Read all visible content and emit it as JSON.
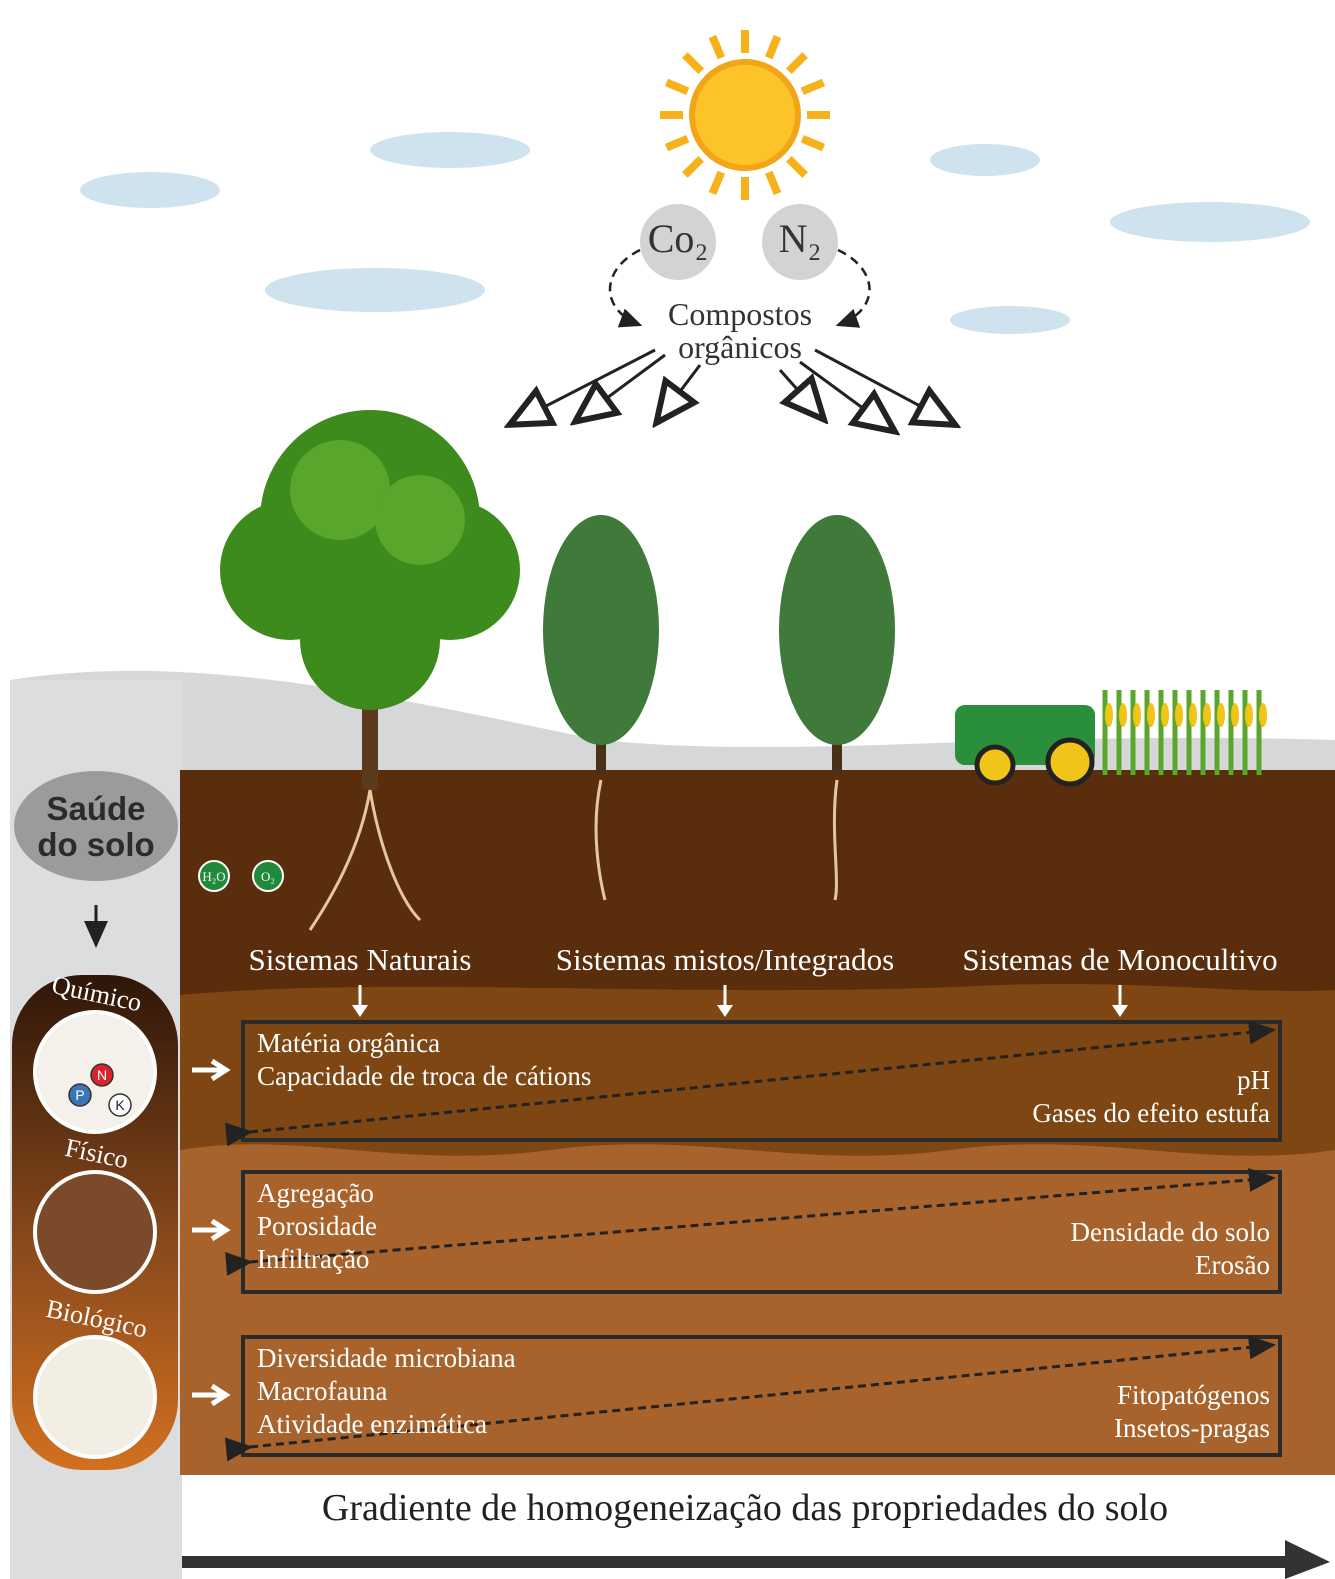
{
  "atmosphere": {
    "gases": [
      "Co₂",
      "N₂"
    ],
    "product": [
      "Compostos",
      "orgânicos"
    ]
  },
  "molecules": [
    "H₂O",
    "O₂"
  ],
  "soil_health": {
    "title": [
      "Saúde",
      "do solo"
    ],
    "indicators": [
      {
        "label": "Químico",
        "icon_labels": [
          "N",
          "P",
          "K"
        ]
      },
      {
        "label": "Físico"
      },
      {
        "label": "Biológico"
      }
    ]
  },
  "systems": [
    "Sistemas Naturais",
    "Sistemas mistos/Integrados",
    "Sistemas de Monocultivo"
  ],
  "panels": [
    {
      "left": [
        "Matéria orgânica",
        "Capacidade de troca de cátions"
      ],
      "right": [
        "pH",
        "Gases do efeito estufa"
      ]
    },
    {
      "left": [
        "Agregação",
        "Porosidade",
        "Infiltração"
      ],
      "right": [
        "Densidade do solo",
        "Erosão"
      ]
    },
    {
      "left": [
        "Diversidade microbiana",
        "Macrofauna",
        "Atividade enzimática"
      ],
      "right": [
        "Fitopatógenos",
        "Insetos-pragas"
      ]
    }
  ],
  "gradient": "Gradiente de homogeneização das propriedades do solo"
}
